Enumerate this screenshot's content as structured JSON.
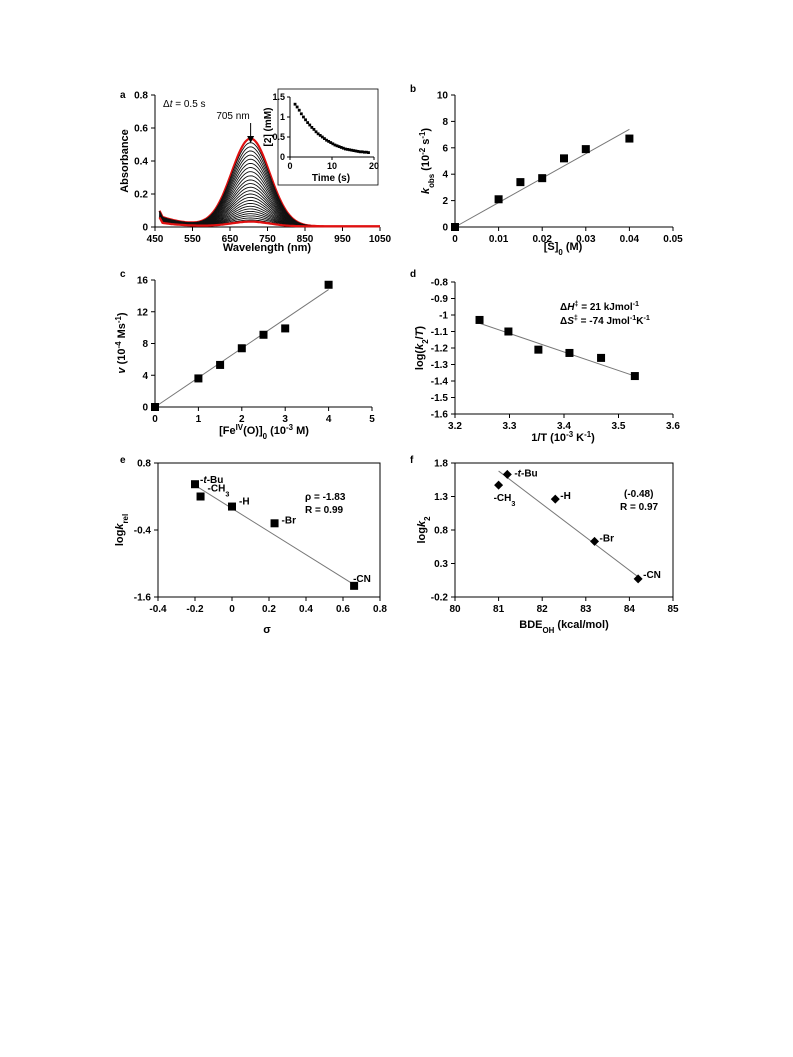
{
  "chart_data": [
    {
      "panel": "a",
      "type": "line",
      "xlabel": "Wavelength (nm)",
      "ylabel": "Absorbance",
      "xlim": [
        450,
        1050
      ],
      "ylim": [
        0,
        0.8
      ],
      "xticks": [
        450,
        550,
        650,
        750,
        850,
        950,
        1050
      ],
      "yticks": [
        0,
        0.2,
        0.4,
        0.6,
        0.8
      ],
      "annotations": [
        "Δt = 0.5 s",
        "705 nm"
      ],
      "peak_nm": 705,
      "peak_absorbance": [
        0.53,
        0.505,
        0.48,
        0.455,
        0.43,
        0.405,
        0.38,
        0.355,
        0.33,
        0.305,
        0.28,
        0.258,
        0.236,
        0.215,
        0.195,
        0.175,
        0.156,
        0.138,
        0.121,
        0.105,
        0.09,
        0.076,
        0.063,
        0.05,
        0.038,
        0.028
      ],
      "red_traces": [
        0,
        25
      ],
      "inset": {
        "type": "scatter",
        "xlabel": "Time (s)",
        "ylabel": "[2] (mM)",
        "xlim": [
          0,
          20
        ],
        "ylim": [
          0,
          1.5
        ],
        "xticks": [
          0,
          10,
          20
        ],
        "yticks": [
          0,
          0.5,
          1,
          1.5
        ],
        "x": [
          1.2,
          1.7,
          2.2,
          2.7,
          3.2,
          3.7,
          4.2,
          4.7,
          5.2,
          5.7,
          6.2,
          6.7,
          7.2,
          7.7,
          8.2,
          8.7,
          9.2,
          9.7,
          10.2,
          10.7,
          11.2,
          11.7,
          12.2,
          12.7,
          13.2,
          13.7,
          14.2,
          14.7,
          15.2,
          15.7,
          16.2,
          16.7,
          17.2,
          17.7,
          18.2,
          18.7
        ],
        "y": [
          1.32,
          1.25,
          1.17,
          1.08,
          1.0,
          0.93,
          0.86,
          0.8,
          0.74,
          0.69,
          0.63,
          0.58,
          0.54,
          0.5,
          0.46,
          0.42,
          0.39,
          0.36,
          0.33,
          0.3,
          0.28,
          0.26,
          0.24,
          0.22,
          0.2,
          0.19,
          0.18,
          0.17,
          0.16,
          0.15,
          0.14,
          0.13,
          0.13,
          0.12,
          0.12,
          0.11
        ]
      }
    },
    {
      "panel": "b",
      "type": "scatter",
      "xlabel": "[S]0 (M)",
      "ylabel": "kobs (10-2 s-1)",
      "xlim": [
        0,
        0.05
      ],
      "ylim": [
        0,
        10
      ],
      "xticks": [
        0,
        0.01,
        0.02,
        0.03,
        0.04,
        0.05
      ],
      "yticks": [
        0,
        2,
        4,
        6,
        8,
        10
      ],
      "x": [
        0,
        0.01,
        0.015,
        0.02,
        0.025,
        0.03,
        0.04
      ],
      "y": [
        0,
        2.1,
        3.4,
        3.7,
        5.2,
        5.9,
        6.7
      ],
      "fit": [
        [
          0,
          0
        ],
        [
          0.04,
          7.4
        ]
      ]
    },
    {
      "panel": "c",
      "type": "scatter",
      "xlabel": "[FeIV(O)]0 (10-3 M)",
      "ylabel": "v (10-4 Ms-1)",
      "xlim": [
        0,
        5
      ],
      "ylim": [
        0,
        16
      ],
      "xticks": [
        0,
        1,
        2,
        3,
        4,
        5
      ],
      "yticks": [
        0,
        4,
        8,
        12,
        16
      ],
      "x": [
        0,
        1,
        1.5,
        2,
        2.5,
        3,
        4
      ],
      "y": [
        0,
        3.6,
        5.3,
        7.4,
        9.1,
        9.9,
        15.4
      ],
      "fit": [
        [
          0,
          0
        ],
        [
          4,
          14.8
        ]
      ]
    },
    {
      "panel": "d",
      "type": "scatter",
      "xlabel": "1/T (10-3 K-1)",
      "ylabel": "log(k2/T)",
      "xlim": [
        3.2,
        3.6
      ],
      "ylim": [
        -1.6,
        -0.8
      ],
      "xticks": [
        3.2,
        3.3,
        3.4,
        3.5,
        3.6
      ],
      "yticks": [
        -0.8,
        -0.9,
        -1,
        -1.1,
        -1.2,
        -1.3,
        -1.4,
        -1.5,
        -1.6
      ],
      "x": [
        3.245,
        3.298,
        3.353,
        3.41,
        3.468,
        3.53
      ],
      "y": [
        -1.03,
        -1.1,
        -1.21,
        -1.23,
        -1.26,
        -1.37
      ],
      "fit": [
        [
          3.245,
          -1.05
        ],
        [
          3.53,
          -1.37
        ]
      ],
      "annotations": [
        "ΔH‡ = 21 kJmol-1",
        "ΔS‡ = -74 Jmol-1K-1"
      ]
    },
    {
      "panel": "e",
      "type": "scatter",
      "xlabel": "σ",
      "ylabel": "logkrel",
      "xlim": [
        -0.4,
        0.8
      ],
      "ylim": [
        -1.6,
        0.8
      ],
      "xticks": [
        -0.4,
        -0.2,
        0,
        0.2,
        0.4,
        0.6,
        0.8
      ],
      "yticks": [
        0.8,
        -0.4,
        -1.6
      ],
      "x": [
        -0.2,
        -0.17,
        0,
        0.23,
        0.66
      ],
      "y": [
        0.42,
        0.2,
        0.02,
        -0.28,
        -1.4
      ],
      "point_labels": [
        "-t-Bu",
        "-CH3",
        "-H",
        "-Br",
        "-CN"
      ],
      "fit": [
        [
          -0.2,
          0.4
        ],
        [
          0.66,
          -1.38
        ]
      ],
      "annotations": [
        "ρ = -1.83",
        "R = 0.99"
      ]
    },
    {
      "panel": "f",
      "type": "scatter",
      "xlabel": "BDEOH (kcal/mol)",
      "ylabel": "logk2",
      "xlim": [
        80,
        85
      ],
      "ylim": [
        -0.2,
        1.8
      ],
      "xticks": [
        80,
        81,
        82,
        83,
        84,
        85
      ],
      "yticks": [
        1.8,
        1.3,
        0.8,
        0.3,
        -0.2
      ],
      "x": [
        81.2,
        81.0,
        82.3,
        83.2,
        84.2
      ],
      "y": [
        1.63,
        1.47,
        1.26,
        0.63,
        0.07
      ],
      "point_labels": [
        "-t-Bu",
        "-CH3",
        "-H",
        "-Br",
        "-CN"
      ],
      "fit": [
        [
          81.0,
          1.68
        ],
        [
          84.2,
          0.1
        ]
      ],
      "annotations": [
        "(-0.48)",
        "R = 0.97"
      ]
    }
  ]
}
